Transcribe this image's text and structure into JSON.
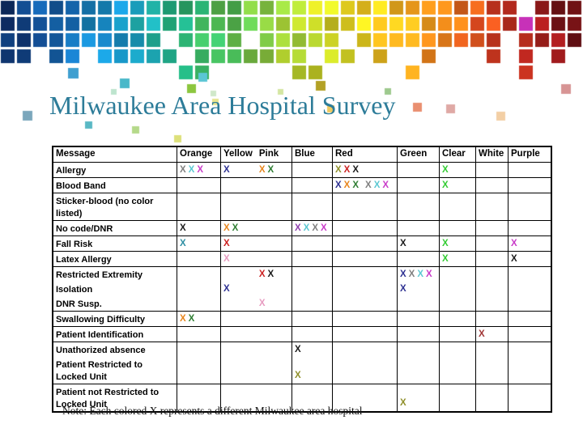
{
  "title": "Milwaukee Area Hospital Survey",
  "note": "Note:  Each colored X represents a different Milwaukee area hospital",
  "x_colors": {
    "navy": "#2E3192",
    "orange": "#E8861E",
    "green": "#2E7D32",
    "gray": "#7F7F7F",
    "cyan": "#5BC8D2",
    "magenta": "#C93BC9",
    "black": "#1A1A1A",
    "red": "#CC2222",
    "olive": "#8F8F2A",
    "teal": "#2E8FA3",
    "purple": "#8E3FAD",
    "pink": "#E79BC0",
    "brightgreen": "#33CC33",
    "maroon": "#A03434"
  },
  "table": {
    "header": {
      "message": "Message",
      "orange": "Orange",
      "yellow": "Yellow",
      "pink": "Pink",
      "blue": "Blue",
      "red": "Red",
      "green": "Green",
      "clear": "Clear",
      "white": "White",
      "purple": "Purple"
    },
    "groups": [
      {
        "lines": [
          {
            "message": "Allergy",
            "cells": {
              "orange": [
                "gray",
                "cyan",
                "magenta"
              ],
              "yellow": [
                "navy"
              ],
              "pink": [
                "orange",
                "green"
              ],
              "red": [
                "olive",
                "red",
                "black"
              ],
              "clear": [
                "brightgreen"
              ]
            }
          }
        ]
      },
      {
        "lines": [
          {
            "message": "Blood Band",
            "cells": {
              "red": [
                "navy",
                "orange",
                "green",
                "",
                "gray",
                "cyan",
                "magenta"
              ],
              "clear": [
                "brightgreen"
              ]
            }
          }
        ]
      },
      {
        "lines": [
          {
            "message": "Sticker-blood (no color listed)",
            "cells": {}
          }
        ]
      },
      {
        "lines": [
          {
            "message": "No code/DNR",
            "cells": {
              "orange": [
                "black"
              ],
              "yellow": [
                "orange",
                "green"
              ],
              "blue": [
                "purple",
                "cyan",
                "gray",
                "magenta"
              ]
            }
          }
        ]
      },
      {
        "lines": [
          {
            "message": "Fall Risk",
            "cells": {
              "orange": [
                "teal"
              ],
              "yellow": [
                "red"
              ],
              "green": [
                "black"
              ],
              "clear": [
                "brightgreen"
              ],
              "purple": [
                "magenta"
              ]
            }
          }
        ]
      },
      {
        "lines": [
          {
            "message": "Latex Allergy",
            "cells": {
              "yellow": [
                "pink"
              ],
              "clear": [
                "brightgreen"
              ],
              "purple": [
                "black"
              ]
            }
          }
        ]
      },
      {
        "lines": [
          {
            "message": "Restricted Extremity",
            "cells": {
              "pink": [
                "red",
                "black"
              ],
              "green": [
                "navy",
                "gray",
                "cyan",
                "magenta"
              ]
            }
          },
          {
            "message": "Isolation",
            "cells": {
              "yellow": [
                "navy"
              ],
              "green": [
                "navy"
              ]
            }
          },
          {
            "message": "DNR Susp.",
            "cells": {
              "pink": [
                "pink"
              ]
            }
          }
        ]
      },
      {
        "lines": [
          {
            "message": "Swallowing Difficulty",
            "cells": {
              "orange": [
                "orange",
                "green"
              ]
            }
          }
        ]
      },
      {
        "lines": [
          {
            "message": "Patient Identification",
            "cells": {
              "white": [
                "maroon"
              ]
            }
          }
        ]
      },
      {
        "lines": [
          {
            "message": "Unathorized absence",
            "cells": {
              "blue": [
                "black"
              ]
            }
          },
          {
            "message": "Patient Restricted to Locked Unit",
            "cells": {
              "blue": [
                "olive"
              ]
            },
            "valign": "bottom"
          }
        ]
      },
      {
        "lines": [
          {
            "message": "Patient not Restricted to Locked Unit",
            "cells": {
              "green": [
                "olive"
              ]
            },
            "valign": "bottom"
          }
        ]
      }
    ]
  }
}
